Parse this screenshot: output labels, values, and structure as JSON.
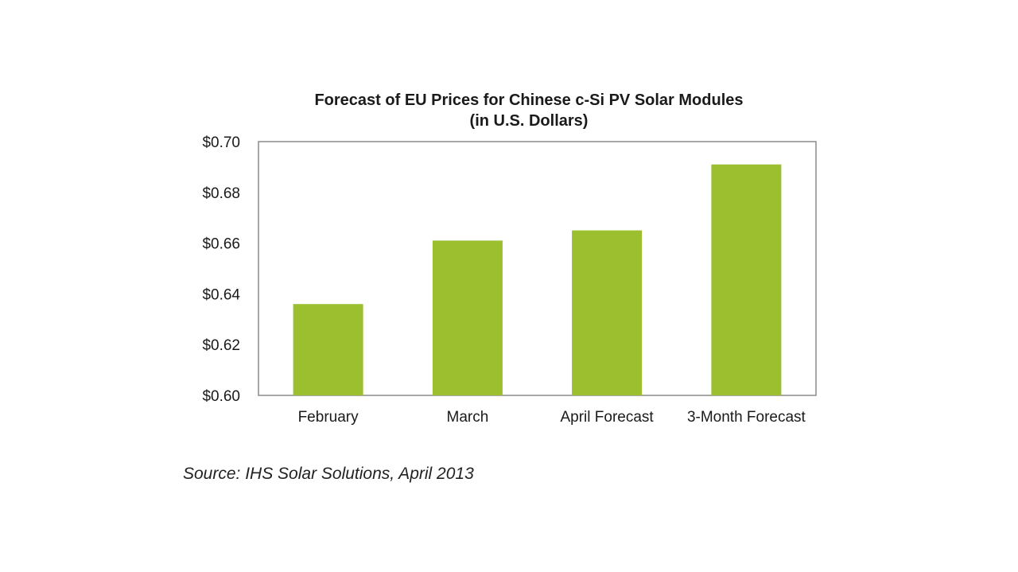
{
  "chart_data": {
    "type": "bar",
    "title": "Forecast of EU Prices for Chinese c-Si PV Solar Modules",
    "subtitle": "(in U.S. Dollars)",
    "xlabel": "",
    "ylabel": "",
    "categories": [
      "February",
      "March",
      "April Forecast",
      "3-Month Forecast"
    ],
    "values": [
      0.636,
      0.661,
      0.665,
      0.691
    ],
    "ylim": [
      0.6,
      0.7
    ],
    "yticks": [
      0.6,
      0.62,
      0.64,
      0.66,
      0.68,
      0.7
    ],
    "ytick_labels": [
      "$0.60",
      "$0.62",
      "$0.64",
      "$0.66",
      "$0.68",
      "$0.70"
    ],
    "grid": false,
    "legend": "none",
    "bar_color": "#9bbf2f",
    "frame_color": "#8a8a8a"
  },
  "source": "Source: IHS Solar Solutions, April 2013"
}
